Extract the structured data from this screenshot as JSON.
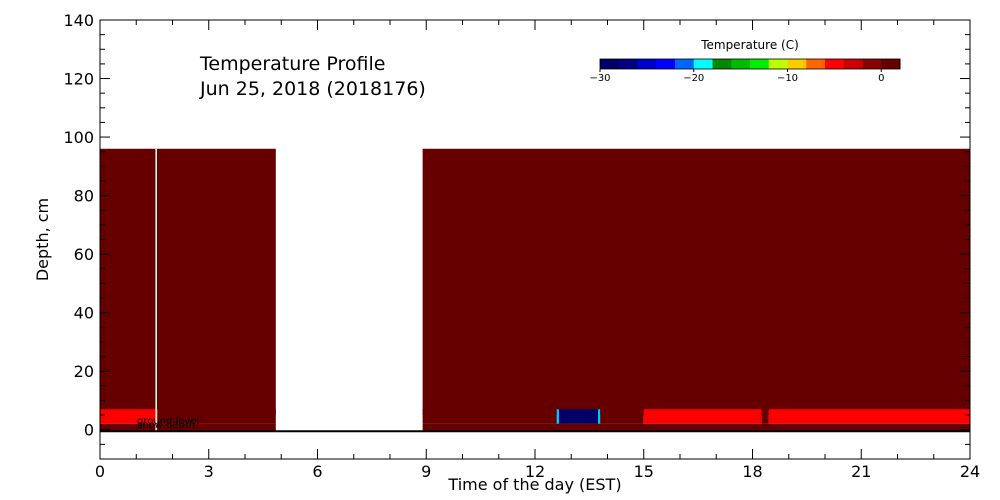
{
  "chart_data": {
    "type": "heatmap",
    "title_lines": [
      "Temperature Profile",
      "Jun 25, 2018 (2018176)"
    ],
    "xlabel": "Time of the day (EST)",
    "ylabel": "Depth, cm",
    "xlim": [
      0,
      24
    ],
    "ylim": [
      -10,
      140
    ],
    "xticks": [
      0,
      3,
      6,
      9,
      12,
      15,
      18,
      21,
      24
    ],
    "yticks": [
      0,
      20,
      40,
      60,
      80,
      100,
      120,
      140
    ],
    "colorbar": {
      "title": "Temperature (C)",
      "range": [
        -30,
        2
      ],
      "ticks": [
        -30,
        -20,
        -10,
        0
      ],
      "colors": [
        "#000066",
        "#000080",
        "#0000cc",
        "#0000ff",
        "#0066ff",
        "#00ffff",
        "#008800",
        "#00bb00",
        "#00ee00",
        "#bbff00",
        "#ffcc00",
        "#ff6600",
        "#ff0000",
        "#cc0000",
        "#880000",
        "#660000"
      ]
    },
    "cells": [
      {
        "x0": 0,
        "x1": 4.85,
        "y0": 5,
        "y1": 96,
        "color": "#660000"
      },
      {
        "x0": 8.9,
        "x1": 24,
        "y0": 5,
        "y1": 96,
        "color": "#660000"
      },
      {
        "x0": 0,
        "x1": 1.6,
        "y0": 2,
        "y1": 7,
        "color": "#ff0000"
      },
      {
        "x0": 1.6,
        "x1": 4.85,
        "y0": 2,
        "y1": 7,
        "color": "#660000"
      },
      {
        "x0": 8.9,
        "x1": 12.6,
        "y0": 2,
        "y1": 7,
        "color": "#660000"
      },
      {
        "x0": 12.6,
        "x1": 13.8,
        "y0": 2,
        "y1": 7,
        "color": "#000066"
      },
      {
        "x0": 12.6,
        "x1": 12.66,
        "y0": 2,
        "y1": 7,
        "color": "#00ccff"
      },
      {
        "x0": 13.74,
        "x1": 13.8,
        "y0": 2,
        "y1": 7,
        "color": "#00ccff"
      },
      {
        "x0": 13.8,
        "x1": 15.0,
        "y0": 2,
        "y1": 7,
        "color": "#660000"
      },
      {
        "x0": 15.0,
        "x1": 18.25,
        "y0": 2,
        "y1": 7,
        "color": "#ff0000"
      },
      {
        "x0": 18.25,
        "x1": 18.45,
        "y0": 2,
        "y1": 7,
        "color": "#660000"
      },
      {
        "x0": 18.45,
        "x1": 24,
        "y0": 2,
        "y1": 7,
        "color": "#ff0000"
      },
      {
        "x0": 0,
        "x1": 4.85,
        "y0": -0.5,
        "y1": 2,
        "color": "#660000"
      },
      {
        "x0": 8.9,
        "x1": 24,
        "y0": -0.5,
        "y1": 2,
        "color": "#660000"
      }
    ],
    "vertical_line": {
      "x": 1.55,
      "y0": -10,
      "y1": 96,
      "color": "#ffffff"
    },
    "ground_line": {
      "y": -0.5,
      "color": "#000000"
    },
    "ground_labels": [
      "ground level",
      "snow depth"
    ]
  }
}
